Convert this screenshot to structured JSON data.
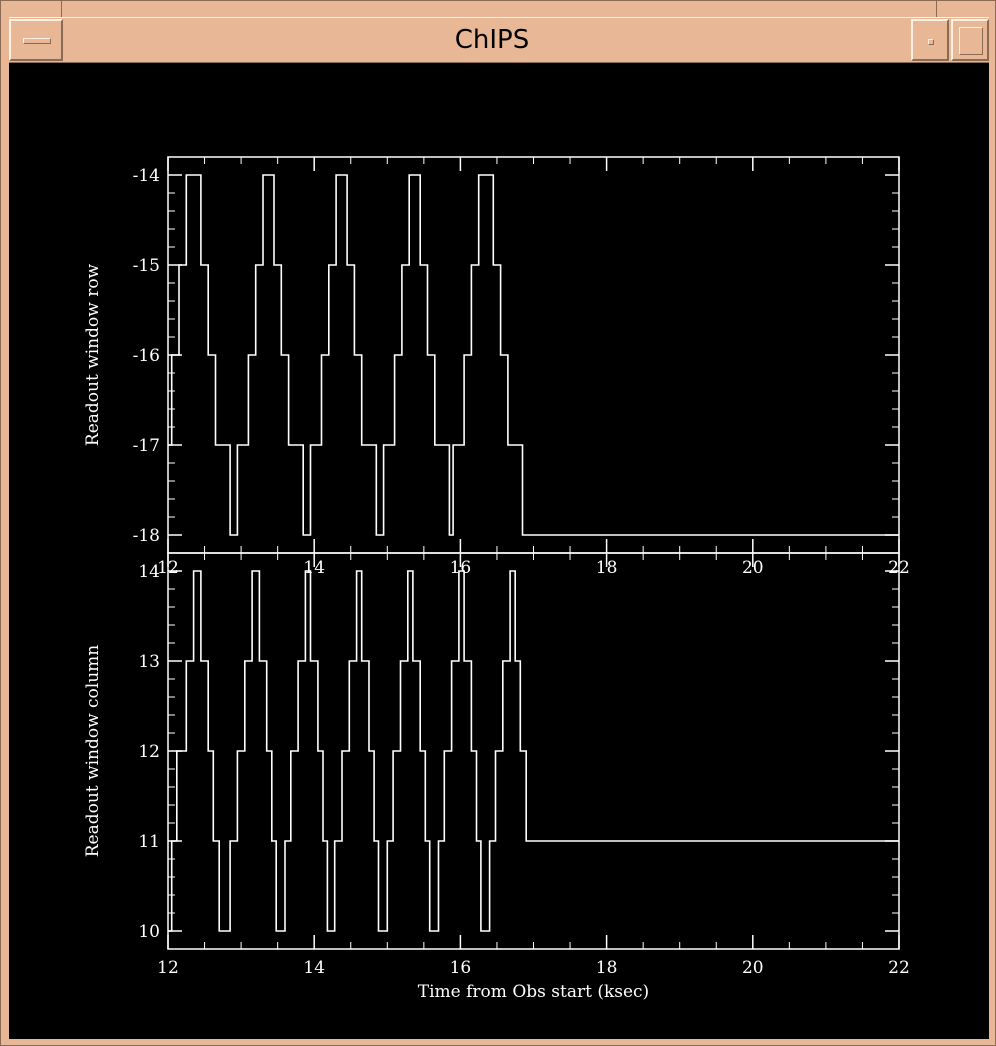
{
  "window": {
    "title": "ChIPS"
  },
  "chart_data": [
    {
      "type": "line",
      "subtype": "step",
      "xlabel": "",
      "ylabel": "Readout window row",
      "xlim": [
        12,
        22
      ],
      "ylim": [
        -18.2,
        -13.8
      ],
      "yticks": [
        -14,
        -15,
        -16,
        -17,
        -18
      ],
      "ytick_labels": [
        "-14",
        "-15",
        "-16",
        "-17",
        "-18"
      ],
      "xticks": [
        12,
        14,
        16,
        18,
        20,
        22
      ],
      "xtick_labels": [
        "12",
        "14",
        "16",
        "18",
        "20",
        "22"
      ],
      "series": [
        {
          "points": [
            [
              12.0,
              -17
            ],
            [
              12.05,
              -17
            ],
            [
              12.05,
              -16
            ],
            [
              12.15,
              -16
            ],
            [
              12.15,
              -15
            ],
            [
              12.25,
              -15
            ],
            [
              12.25,
              -14
            ],
            [
              12.45,
              -14
            ],
            [
              12.45,
              -15
            ],
            [
              12.55,
              -15
            ],
            [
              12.55,
              -16
            ],
            [
              12.65,
              -16
            ],
            [
              12.65,
              -17
            ],
            [
              12.85,
              -17
            ],
            [
              12.85,
              -18
            ],
            [
              12.95,
              -18
            ],
            [
              12.95,
              -17
            ],
            [
              13.1,
              -17
            ],
            [
              13.1,
              -16
            ],
            [
              13.2,
              -16
            ],
            [
              13.2,
              -15
            ],
            [
              13.3,
              -15
            ],
            [
              13.3,
              -14
            ],
            [
              13.45,
              -14
            ],
            [
              13.45,
              -15
            ],
            [
              13.55,
              -15
            ],
            [
              13.55,
              -16
            ],
            [
              13.65,
              -16
            ],
            [
              13.65,
              -17
            ],
            [
              13.85,
              -17
            ],
            [
              13.85,
              -18
            ],
            [
              13.95,
              -18
            ],
            [
              13.95,
              -17
            ],
            [
              14.1,
              -17
            ],
            [
              14.1,
              -16
            ],
            [
              14.2,
              -16
            ],
            [
              14.2,
              -15
            ],
            [
              14.3,
              -15
            ],
            [
              14.3,
              -14
            ],
            [
              14.45,
              -14
            ],
            [
              14.45,
              -15
            ],
            [
              14.55,
              -15
            ],
            [
              14.55,
              -16
            ],
            [
              14.65,
              -16
            ],
            [
              14.65,
              -17
            ],
            [
              14.85,
              -17
            ],
            [
              14.85,
              -18
            ],
            [
              14.95,
              -18
            ],
            [
              14.95,
              -17
            ],
            [
              15.1,
              -17
            ],
            [
              15.1,
              -16
            ],
            [
              15.2,
              -16
            ],
            [
              15.2,
              -15
            ],
            [
              15.3,
              -15
            ],
            [
              15.3,
              -14
            ],
            [
              15.45,
              -14
            ],
            [
              15.45,
              -15
            ],
            [
              15.55,
              -15
            ],
            [
              15.55,
              -16
            ],
            [
              15.65,
              -16
            ],
            [
              15.65,
              -17
            ],
            [
              15.85,
              -17
            ],
            [
              15.85,
              -18
            ],
            [
              15.9,
              -18
            ],
            [
              15.9,
              -17
            ],
            [
              16.05,
              -17
            ],
            [
              16.05,
              -16
            ],
            [
              16.15,
              -16
            ],
            [
              16.15,
              -15
            ],
            [
              16.25,
              -15
            ],
            [
              16.25,
              -14
            ],
            [
              16.45,
              -14
            ],
            [
              16.45,
              -15
            ],
            [
              16.55,
              -15
            ],
            [
              16.55,
              -16
            ],
            [
              16.65,
              -16
            ],
            [
              16.65,
              -17
            ],
            [
              16.85,
              -17
            ],
            [
              16.85,
              -18
            ],
            [
              22.0,
              -18
            ]
          ]
        }
      ],
      "grid": false,
      "legend": "none"
    },
    {
      "type": "line",
      "subtype": "step",
      "xlabel": "Time from Obs start (ksec)",
      "ylabel": "Readout window column",
      "xlim": [
        12,
        22
      ],
      "ylim": [
        9.8,
        14.2
      ],
      "yticks": [
        10,
        11,
        12,
        13,
        14
      ],
      "ytick_labels": [
        "10",
        "11",
        "12",
        "13",
        "14"
      ],
      "xticks": [
        12,
        14,
        16,
        18,
        20,
        22
      ],
      "xtick_labels": [
        "12",
        "14",
        "16",
        "18",
        "20",
        "22"
      ],
      "series": [
        {
          "points": [
            [
              12.0,
              10
            ],
            [
              12.05,
              10
            ],
            [
              12.05,
              11
            ],
            [
              12.12,
              11
            ],
            [
              12.12,
              12
            ],
            [
              12.25,
              12
            ],
            [
              12.25,
              13
            ],
            [
              12.35,
              13
            ],
            [
              12.35,
              14
            ],
            [
              12.45,
              14
            ],
            [
              12.45,
              13
            ],
            [
              12.55,
              13
            ],
            [
              12.55,
              12
            ],
            [
              12.62,
              12
            ],
            [
              12.62,
              11
            ],
            [
              12.7,
              11
            ],
            [
              12.7,
              10
            ],
            [
              12.85,
              10
            ],
            [
              12.85,
              11
            ],
            [
              12.95,
              11
            ],
            [
              12.95,
              12
            ],
            [
              13.05,
              12
            ],
            [
              13.05,
              13
            ],
            [
              13.15,
              13
            ],
            [
              13.15,
              14
            ],
            [
              13.25,
              14
            ],
            [
              13.25,
              13
            ],
            [
              13.35,
              13
            ],
            [
              13.35,
              12
            ],
            [
              13.42,
              12
            ],
            [
              13.42,
              11
            ],
            [
              13.48,
              11
            ],
            [
              13.48,
              10
            ],
            [
              13.6,
              10
            ],
            [
              13.6,
              11
            ],
            [
              13.68,
              11
            ],
            [
              13.68,
              12
            ],
            [
              13.78,
              12
            ],
            [
              13.78,
              13
            ],
            [
              13.88,
              13
            ],
            [
              13.88,
              14
            ],
            [
              13.95,
              14
            ],
            [
              13.95,
              13
            ],
            [
              14.05,
              13
            ],
            [
              14.05,
              12
            ],
            [
              14.12,
              12
            ],
            [
              14.12,
              11
            ],
            [
              14.18,
              11
            ],
            [
              14.18,
              10
            ],
            [
              14.28,
              10
            ],
            [
              14.28,
              11
            ],
            [
              14.38,
              11
            ],
            [
              14.38,
              12
            ],
            [
              14.48,
              12
            ],
            [
              14.48,
              13
            ],
            [
              14.58,
              13
            ],
            [
              14.58,
              14
            ],
            [
              14.65,
              14
            ],
            [
              14.65,
              13
            ],
            [
              14.75,
              13
            ],
            [
              14.75,
              12
            ],
            [
              14.82,
              12
            ],
            [
              14.82,
              11
            ],
            [
              14.88,
              11
            ],
            [
              14.88,
              10
            ],
            [
              15.0,
              10
            ],
            [
              15.0,
              11
            ],
            [
              15.08,
              11
            ],
            [
              15.08,
              12
            ],
            [
              15.18,
              12
            ],
            [
              15.18,
              13
            ],
            [
              15.28,
              13
            ],
            [
              15.28,
              14
            ],
            [
              15.35,
              14
            ],
            [
              15.35,
              13
            ],
            [
              15.45,
              13
            ],
            [
              15.45,
              12
            ],
            [
              15.52,
              12
            ],
            [
              15.52,
              11
            ],
            [
              15.58,
              11
            ],
            [
              15.58,
              10
            ],
            [
              15.7,
              10
            ],
            [
              15.7,
              11
            ],
            [
              15.78,
              11
            ],
            [
              15.78,
              12
            ],
            [
              15.88,
              12
            ],
            [
              15.88,
              13
            ],
            [
              15.98,
              13
            ],
            [
              15.98,
              14
            ],
            [
              16.05,
              14
            ],
            [
              16.05,
              13
            ],
            [
              16.15,
              13
            ],
            [
              16.15,
              12
            ],
            [
              16.22,
              12
            ],
            [
              16.22,
              11
            ],
            [
              16.28,
              11
            ],
            [
              16.28,
              10
            ],
            [
              16.4,
              10
            ],
            [
              16.4,
              11
            ],
            [
              16.48,
              11
            ],
            [
              16.48,
              12
            ],
            [
              16.58,
              12
            ],
            [
              16.58,
              13
            ],
            [
              16.68,
              13
            ],
            [
              16.68,
              14
            ],
            [
              16.75,
              14
            ],
            [
              16.75,
              13
            ],
            [
              16.82,
              13
            ],
            [
              16.82,
              12
            ],
            [
              16.9,
              12
            ],
            [
              16.9,
              11
            ],
            [
              22.0,
              11
            ]
          ]
        }
      ],
      "grid": false,
      "legend": "none"
    }
  ]
}
